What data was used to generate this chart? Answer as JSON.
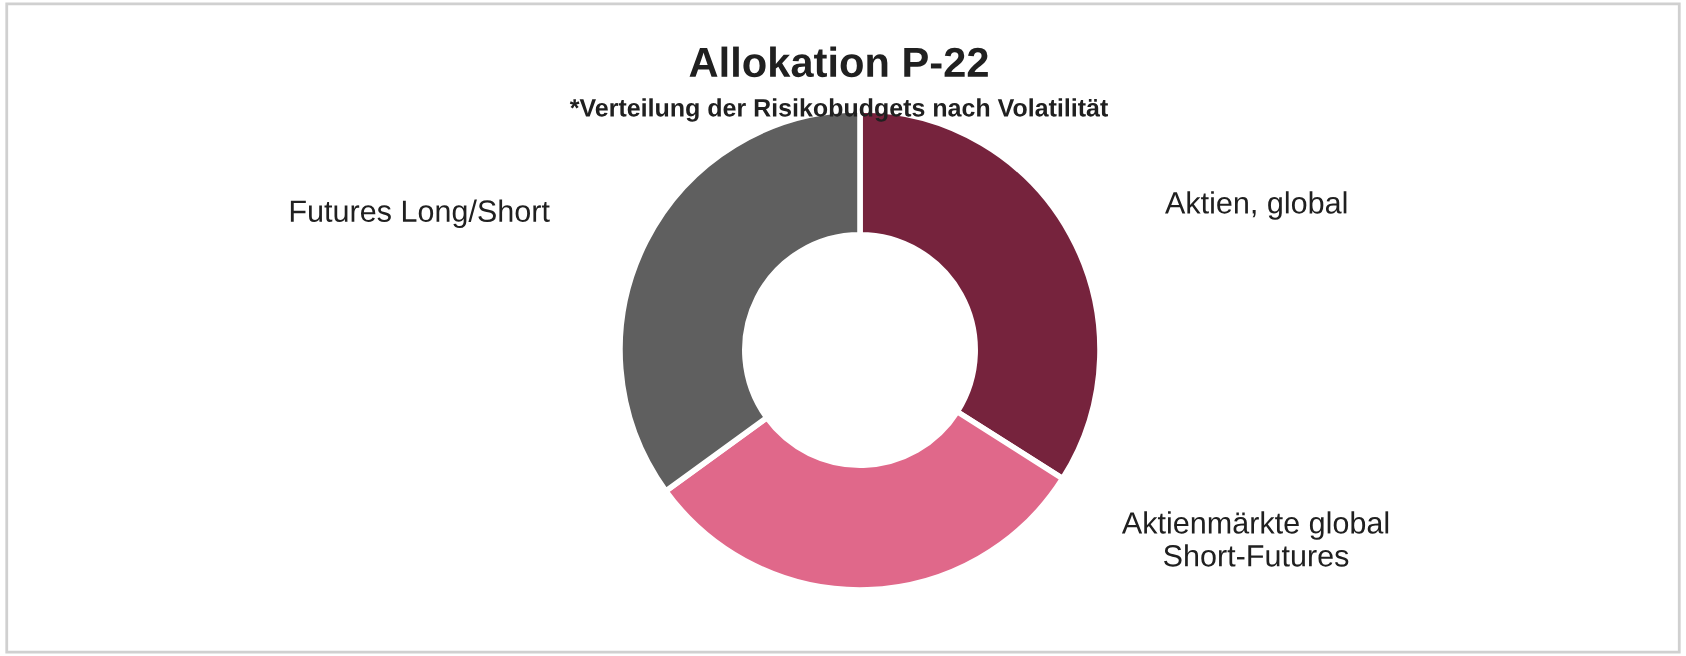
{
  "chart_data": {
    "type": "donut",
    "title": "Allokation P-22",
    "subtitle": "*Verteilung der Risikobudgets nach Volatilität",
    "categories": [
      "Aktien, global",
      "Aktienmärkte global\nShort-Futures",
      "Futures Long/Short"
    ],
    "values": [
      34,
      31,
      35
    ],
    "colors": [
      "#76233d",
      "#e0688a",
      "#5f5f5f"
    ],
    "legend": false
  }
}
